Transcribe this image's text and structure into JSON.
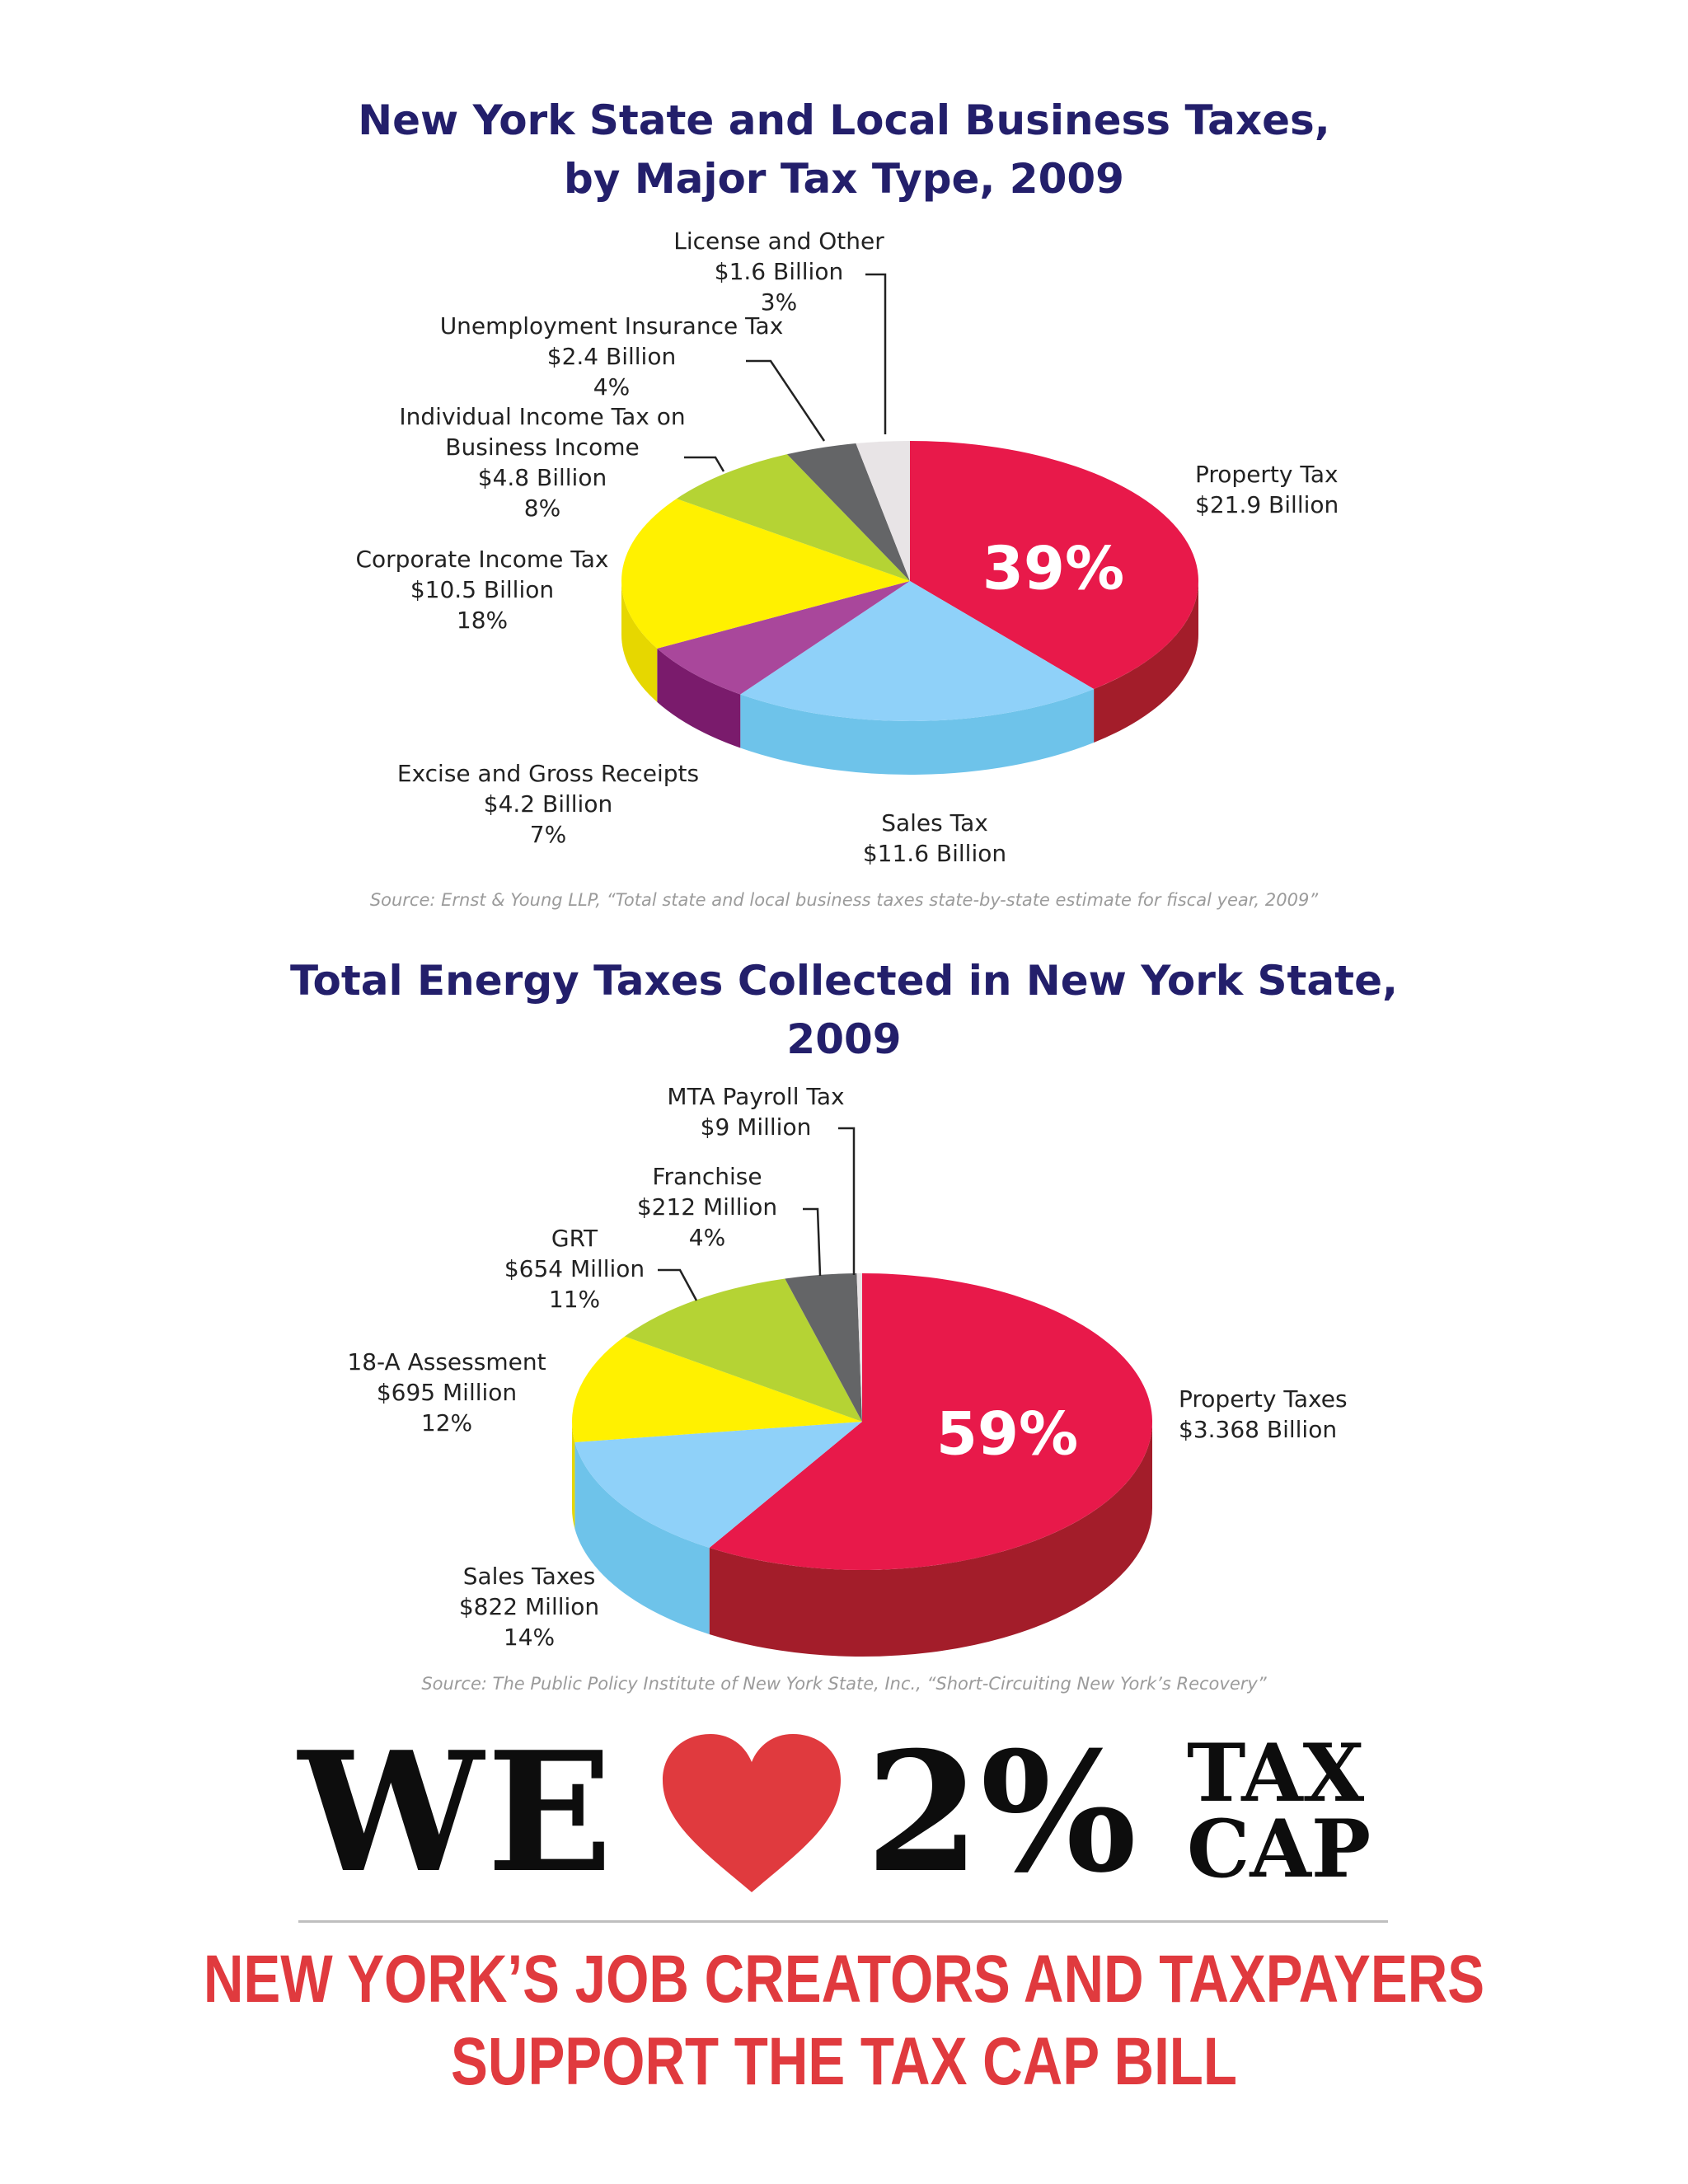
{
  "chart_data": [
    {
      "type": "pie",
      "title_lines": [
        "New York State and Local Business Taxes,",
        "by Major Tax Type, 2009"
      ],
      "slices": [
        {
          "label": "Property Tax",
          "value_text": "$21.9 Billion",
          "percent": 39,
          "percent_text": "39%",
          "color": "#e8194a",
          "side": "#a31d2a"
        },
        {
          "label": "Sales Tax",
          "value_text": "$11.6 Billion",
          "percent": 21,
          "percent_text": "",
          "color": "#8fd1f9",
          "side": "#6ec3ea"
        },
        {
          "label": "Excise and Gross Receipts",
          "value_text": "$4.2 Billion",
          "percent": 7,
          "percent_text": "7%",
          "color": "#a9479b",
          "side": "#7a1b6c"
        },
        {
          "label": "Corporate Income Tax",
          "value_text": "$10.5 Billion",
          "percent": 18,
          "percent_text": "18%",
          "color": "#fff100",
          "side": "#e6d700"
        },
        {
          "label": "Individual Income Tax on Business Income",
          "value_text": "$4.8 Billion",
          "percent": 8,
          "percent_text": "8%",
          "color": "#b5d334",
          "side": "#8ea624"
        },
        {
          "label": "Unemployment Insurance Tax",
          "value_text": "$2.4 Billion",
          "percent": 4,
          "percent_text": "4%",
          "color": "#646567",
          "side": "#4a4b4d"
        },
        {
          "label": "License and Other",
          "value_text": "$1.6 Billion",
          "percent": 3,
          "percent_text": "3%",
          "color": "#e8e4e6",
          "side": "#c9c5c7"
        }
      ],
      "source": "Source: Ernst & Young LLP, “Total state and local business taxes state-by-state estimate for fiscal year, 2009”"
    },
    {
      "type": "pie",
      "title_lines": [
        "Total Energy Taxes Collected in New York State,",
        "2009"
      ],
      "slices": [
        {
          "label": "Property Taxes",
          "value_text": "$3.368 Billion",
          "percent": 59,
          "percent_text": "59%",
          "color": "#e8194a",
          "side": "#a31d2a"
        },
        {
          "label": "Sales Taxes",
          "value_text": "$822 Million",
          "percent": 14,
          "percent_text": "14%",
          "color": "#8fd1f9",
          "side": "#6ec3ea"
        },
        {
          "label": "18-A Assessment",
          "value_text": "$695 Million",
          "percent": 12,
          "percent_text": "12%",
          "color": "#fff100",
          "side": "#e6d700"
        },
        {
          "label": "GRT",
          "value_text": "$654 Million",
          "percent": 11,
          "percent_text": "11%",
          "color": "#b5d334",
          "side": "#8ea624"
        },
        {
          "label": "Franchise",
          "value_text": "$212 Million",
          "percent": 4,
          "percent_text": "4%",
          "color": "#646567",
          "side": "#4a4b4d"
        },
        {
          "label": "MTA Payroll Tax",
          "value_text": "$9 Million",
          "percent": 0.3,
          "percent_text": "",
          "color": "#e8e4e6",
          "side": "#c9c5c7"
        }
      ],
      "source": "Source: The Public Policy Institute of New York State, Inc., “Short-Circuiting New York’s Recovery”"
    }
  ],
  "banner": {
    "we": "WE",
    "heart_icon": "heart-icon",
    "heart_color": "#e03a3e",
    "percent": "2%",
    "tax": "TAX",
    "cap": "CAP"
  },
  "slogan": {
    "line1": "NEW YORK’S JOB CREATORS AND TAXPAYERS",
    "line2": "SUPPORT THE TAX CAP BILL",
    "color": "#e03a3e"
  }
}
